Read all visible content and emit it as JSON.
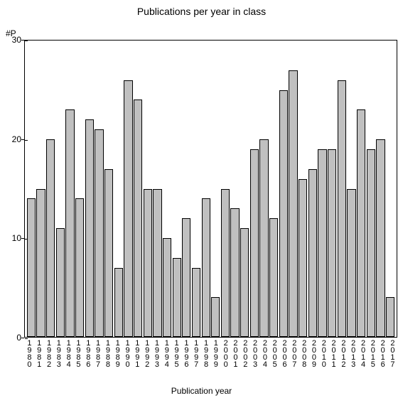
{
  "chart": {
    "type": "bar",
    "title": "Publications per year in class",
    "title_fontsize": 14,
    "y_axis_label": "#P",
    "x_axis_title": "Publication year",
    "label_fontsize": 12,
    "ylim": [
      0,
      30
    ],
    "yticks": [
      0,
      10,
      20,
      30
    ],
    "background_color": "#ffffff",
    "bar_color": "#c0c0c0",
    "bar_border_color": "#000000",
    "axis_color": "#000000",
    "text_color": "#000000",
    "categories": [
      "1980",
      "1981",
      "1982",
      "1983",
      "1984",
      "1985",
      "1986",
      "1987",
      "1988",
      "1989",
      "1990",
      "1991",
      "1992",
      "1993",
      "1994",
      "1995",
      "1996",
      "1997",
      "1998",
      "1999",
      "2000",
      "2001",
      "2002",
      "2003",
      "2004",
      "2005",
      "2006",
      "2007",
      "2008",
      "2009",
      "2010",
      "2011",
      "2012",
      "2013",
      "2014",
      "2015",
      "2016",
      "2017"
    ],
    "values": [
      14,
      15,
      20,
      11,
      23,
      14,
      22,
      21,
      17,
      7,
      26,
      24,
      15,
      15,
      10,
      8,
      12,
      7,
      14,
      4,
      15,
      13,
      11,
      19,
      20,
      12,
      25,
      27,
      16,
      17,
      19,
      19,
      26,
      15,
      23,
      19,
      20,
      4
    ]
  }
}
